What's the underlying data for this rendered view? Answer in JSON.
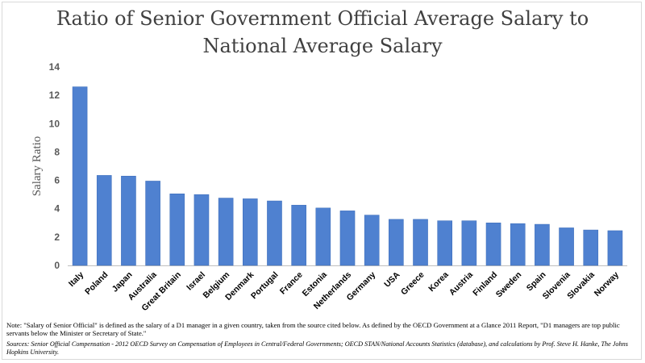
{
  "chart_data": {
    "type": "bar",
    "title": [
      "Ratio of Senior Government Official Average Salary to",
      "National Average Salary"
    ],
    "xlabel": "",
    "ylabel": "Salary Ratio",
    "ylim": [
      0,
      14
    ],
    "yticks": [
      0,
      2,
      4,
      6,
      8,
      10,
      12,
      14
    ],
    "grid": false,
    "bar_color": "#4f81d0",
    "categories": [
      "Italy",
      "Poland",
      "Japan",
      "Australia",
      "Great Britain",
      "Israel",
      "Belgium",
      "Denmark",
      "Portugal",
      "France",
      "Estonia",
      "Netherlands",
      "Germany",
      "USA",
      "Greece",
      "Korea",
      "Austria",
      "Finland",
      "Sweden",
      "Spain",
      "Slovenia",
      "Slovakia",
      "Norway"
    ],
    "values": [
      12.6,
      6.35,
      6.3,
      5.95,
      5.05,
      5.0,
      4.75,
      4.7,
      4.55,
      4.25,
      4.05,
      3.85,
      3.55,
      3.25,
      3.25,
      3.15,
      3.15,
      3.0,
      2.95,
      2.9,
      2.65,
      2.5,
      2.45
    ]
  },
  "footnotes": {
    "note": "Note: \"Salary of Senior Official\" is defined as the salary of a D1 manager in a given country, taken from the source cited below. As defined by the OECD Government at a Glance 2011 Report, \"D1 managers are top public servants below the Minister or Secretary of State.\"",
    "sources": "Sources: Senior Official Compensation - 2012 OECD Survey on Compensation of Employees in Central/Federal Governments; OECD STAN/National Accounts Statistics (database), and calculations by Prof. Steve H. Hanke, The Johns Hopkins University."
  }
}
